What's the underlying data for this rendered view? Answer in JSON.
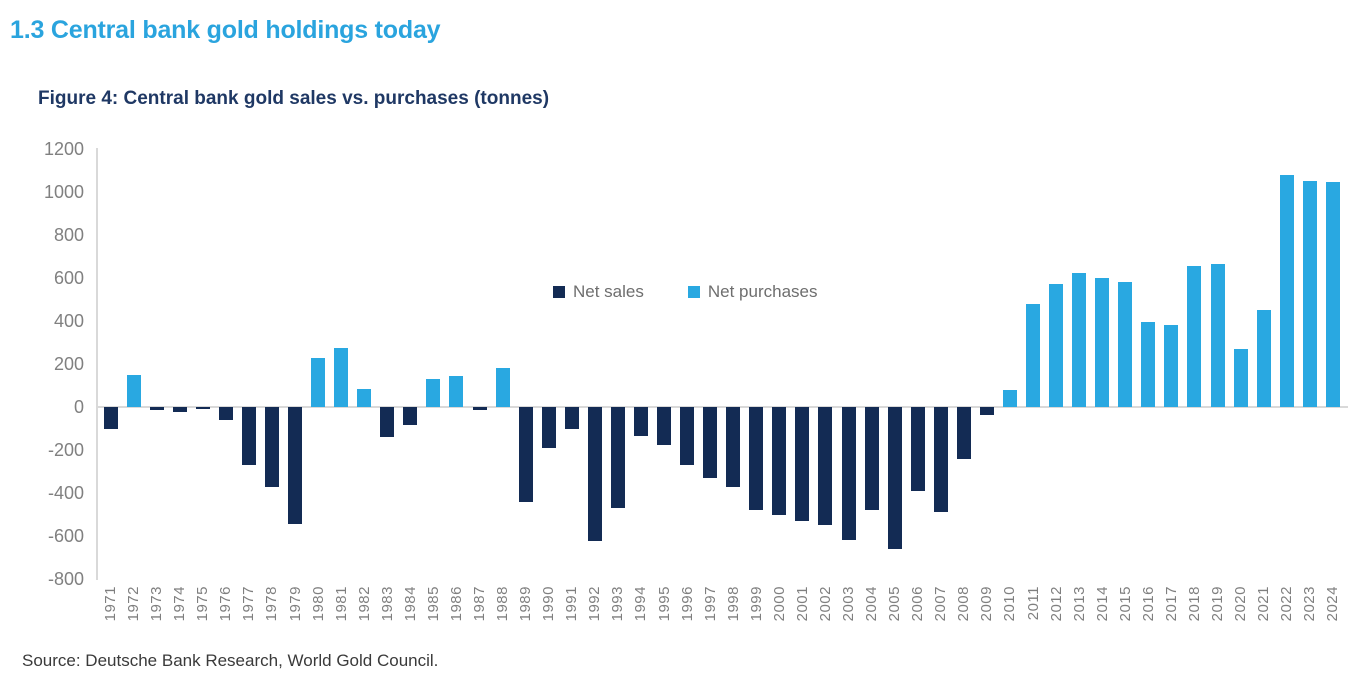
{
  "page": {
    "section_title": "1.3 Central bank gold holdings today",
    "figure_title": "Figure 4: Central bank gold sales vs. purchases (tonnes)",
    "source": "Source: Deutsche Bank Research, World Gold Council."
  },
  "legend": {
    "net_sales": "Net sales",
    "net_purchases": "Net purchases"
  },
  "colors": {
    "section_title": "#2AA4DE",
    "figure_title": "#1F3864",
    "net_sales": "#132B54",
    "net_purchases": "#29A8E1",
    "axis_text": "#808080",
    "x_axis_text": "#7f7f7f",
    "legend_text": "#6e6e6e",
    "gridline": "#D9D9D9",
    "source_text": "#3A3A3A"
  },
  "chart_data": {
    "type": "bar",
    "title": "Figure 4: Central bank gold sales vs. purchases (tonnes)",
    "xlabel": "",
    "ylabel": "",
    "ylim": [
      -800,
      1200
    ],
    "y_ticks": [
      1200,
      1000,
      800,
      600,
      400,
      200,
      0,
      -200,
      -400,
      -600,
      -800
    ],
    "grid": "zero-line-only",
    "legend_position": "top-center",
    "series": [
      {
        "name": "Net sales",
        "sign": "negative",
        "color": "#132B54"
      },
      {
        "name": "Net purchases",
        "sign": "positive",
        "color": "#29A8E1"
      }
    ],
    "categories": [
      1971,
      1972,
      1973,
      1974,
      1975,
      1976,
      1977,
      1978,
      1979,
      1980,
      1981,
      1982,
      1983,
      1984,
      1985,
      1986,
      1987,
      1988,
      1989,
      1990,
      1991,
      1992,
      1993,
      1994,
      1995,
      1996,
      1997,
      1998,
      1999,
      2000,
      2001,
      2002,
      2003,
      2004,
      2005,
      2006,
      2007,
      2008,
      2009,
      2010,
      2011,
      2012,
      2013,
      2014,
      2015,
      2016,
      2017,
      2018,
      2019,
      2020,
      2021,
      2022,
      2023,
      2024
    ],
    "values": [
      -100,
      150,
      -15,
      -25,
      -10,
      -60,
      -270,
      -370,
      -545,
      230,
      275,
      85,
      -140,
      -85,
      130,
      145,
      -15,
      180,
      -440,
      -190,
      -100,
      -625,
      -470,
      -135,
      -175,
      -270,
      -330,
      -370,
      -480,
      -500,
      -530,
      -550,
      -620,
      -480,
      -660,
      -390,
      -490,
      -240,
      -35,
      80,
      480,
      570,
      625,
      600,
      580,
      395,
      380,
      655,
      665,
      270,
      450,
      1080,
      1050,
      1045
    ]
  }
}
